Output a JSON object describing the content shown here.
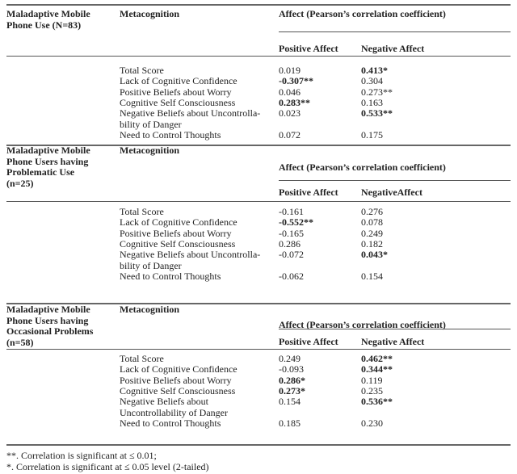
{
  "table": {
    "affect_heading": "Affect (Pearson’s correlation coefficient)",
    "metacognition_heading": "Metacognition",
    "sections": [
      {
        "group": [
          "Maladaptive Mobile",
          "Phone Use (N=83)"
        ],
        "positive_header": "Positive Affect",
        "negative_header": "Negative Affect",
        "rows": [
          {
            "label": "Total Score",
            "positive": "0.019",
            "positive_bold": false,
            "negative": "0.413*",
            "negative_bold": true
          },
          {
            "label": "Lack of Cognitive Confidence",
            "positive": "-0.307**",
            "positive_bold": true,
            "negative": "0.304",
            "negative_bold": false
          },
          {
            "label": "Positive Beliefs about Worry",
            "positive": "0.046",
            "positive_bold": false,
            "negative": "0.273**",
            "negative_bold": false
          },
          {
            "label": "Cognitive Self Consciousness",
            "positive": "0.283**",
            "positive_bold": true,
            "negative": "0.163",
            "negative_bold": false
          },
          {
            "label": "Negative Beliefs about Uncontrolla- bility of Danger",
            "positive": "0.023",
            "positive_bold": false,
            "negative": "0.533**",
            "negative_bold": true
          },
          {
            "label": "Need to Control Thoughts",
            "positive": "0.072",
            "positive_bold": false,
            "negative": "0.175",
            "negative_bold": false
          }
        ]
      },
      {
        "group": [
          "Maladaptive Mobile",
          "Phone Users having",
          "Problematic Use",
          "(n=25)"
        ],
        "positive_header": "Positive Affect",
        "negative_header": "NegativeAffect",
        "rows": [
          {
            "label": "Total Score",
            "positive": "-0.161",
            "positive_bold": false,
            "negative": "0.276",
            "negative_bold": false
          },
          {
            "label": "Lack of Cognitive Confidence",
            "positive": "-0.552**",
            "positive_bold": true,
            "negative": "0.078",
            "negative_bold": false
          },
          {
            "label": "Positive Beliefs about Worry",
            "positive": "-0.165",
            "positive_bold": false,
            "negative": "0.249",
            "negative_bold": false
          },
          {
            "label": "Cognitive Self Consciousness",
            "positive": "0.286",
            "positive_bold": false,
            "negative": "0.182",
            "negative_bold": false
          },
          {
            "label": "Negative Beliefs about Uncontrolla- bility of Danger",
            "positive": "-0.072",
            "positive_bold": false,
            "negative": "0.043*",
            "negative_bold": true
          },
          {
            "label": "Need to Control Thoughts",
            "positive": "-0.062",
            "positive_bold": false,
            "negative": "0.154",
            "negative_bold": false
          }
        ]
      },
      {
        "group": [
          "Maladaptive Mobile",
          "Phone Users having",
          "Occasional Problems",
          "(n=58)"
        ],
        "positive_header": "Positive Affect",
        "negative_header": "Negative Affect",
        "rows": [
          {
            "label": "Total Score",
            "positive": "0.249",
            "positive_bold": false,
            "negative": "0.462**",
            "negative_bold": true
          },
          {
            "label": "Lack of Cognitive Confidence",
            "positive": "-0.093",
            "positive_bold": false,
            "negative": "0.344**",
            "negative_bold": true
          },
          {
            "label": "Positive Beliefs about Worry",
            "positive": "0.286*",
            "positive_bold": true,
            "negative": "0.119",
            "negative_bold": false
          },
          {
            "label": "Cognitive Self Consciousness",
            "positive": "0.273*",
            "positive_bold": true,
            "negative": "0.235",
            "negative_bold": false
          },
          {
            "label": "Negative Beliefs about Uncontrollability of Danger",
            "positive": "0.154",
            "positive_bold": false,
            "negative": "0.536**",
            "negative_bold": true
          },
          {
            "label": "Need to Control Thoughts",
            "positive": "0.185",
            "positive_bold": false,
            "negative": "0.230",
            "negative_bold": false
          }
        ]
      }
    ],
    "footnotes": [
      "**. Correlation is significant at ≤ 0.01;",
      "*. Correlation is significant at ≤ 0.05 level (2-tailed)"
    ]
  }
}
